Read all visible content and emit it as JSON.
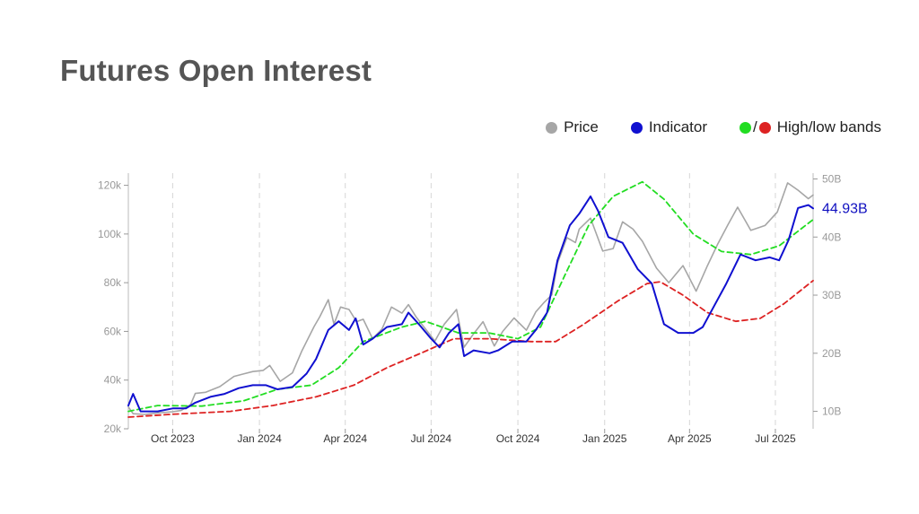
{
  "page": {
    "title": "Futures Open Interest"
  },
  "legend": {
    "price_label": "Price",
    "indicator_label": "Indicator",
    "bands_label": "High/low bands",
    "bands_separator": "/"
  },
  "colors": {
    "price": "#a6a6a6",
    "indicator": "#1010d0",
    "high_band": "#22dd22",
    "low_band": "#dd2222",
    "title": "#555555",
    "last_value": "#1010c0"
  },
  "chart_data": {
    "type": "line",
    "title": "Futures Open Interest",
    "x_axis": {
      "type": "date",
      "range": [
        "2023-08-15",
        "2025-08-10"
      ],
      "tick_labels": [
        "Oct 2023",
        "Jan 2024",
        "Apr 2024",
        "Jul 2024",
        "Oct 2024",
        "Jan 2025",
        "Apr 2025",
        "Jul 2025"
      ],
      "tick_dates": [
        "2023-10-01",
        "2024-01-01",
        "2024-04-01",
        "2024-07-01",
        "2024-10-01",
        "2025-01-01",
        "2025-04-01",
        "2025-07-01"
      ],
      "vertical_grid": "dashed"
    },
    "y_left": {
      "series": "Price",
      "range": [
        20000,
        125000
      ],
      "tick_values": [
        20000,
        40000,
        60000,
        80000,
        100000,
        120000
      ],
      "tick_labels": [
        "20k",
        "40k",
        "60k",
        "80k",
        "100k",
        "120k"
      ]
    },
    "y_right": {
      "series": "Indicator",
      "range": [
        7000000000,
        51000000000
      ],
      "tick_values": [
        10000000000,
        20000000000,
        30000000000,
        40000000000,
        50000000000
      ],
      "tick_labels": [
        "10B",
        "20B",
        "30B",
        "40B",
        "50B"
      ]
    },
    "last_value_label": "44.93B",
    "series": [
      {
        "name": "Price",
        "axis": "left",
        "points": [
          [
            "2023-08-15",
            29000
          ],
          [
            "2023-08-20",
            26200
          ],
          [
            "2023-09-01",
            25900
          ],
          [
            "2023-09-15",
            26500
          ],
          [
            "2023-10-01",
            27000
          ],
          [
            "2023-10-10",
            27500
          ],
          [
            "2023-10-20",
            30000
          ],
          [
            "2023-10-25",
            34500
          ],
          [
            "2023-11-05",
            35000
          ],
          [
            "2023-11-20",
            37300
          ],
          [
            "2023-12-05",
            41500
          ],
          [
            "2023-12-15",
            42500
          ],
          [
            "2023-12-25",
            43500
          ],
          [
            "2024-01-05",
            44000
          ],
          [
            "2024-01-12",
            46000
          ],
          [
            "2024-01-23",
            39500
          ],
          [
            "2024-02-05",
            43000
          ],
          [
            "2024-02-15",
            52000
          ],
          [
            "2024-02-28",
            62000
          ],
          [
            "2024-03-05",
            66000
          ],
          [
            "2024-03-14",
            73000
          ],
          [
            "2024-03-20",
            63000
          ],
          [
            "2024-03-27",
            70000
          ],
          [
            "2024-04-05",
            69000
          ],
          [
            "2024-04-13",
            64000
          ],
          [
            "2024-04-20",
            65000
          ],
          [
            "2024-04-30",
            57000
          ],
          [
            "2024-05-10",
            61000
          ],
          [
            "2024-05-20",
            70000
          ],
          [
            "2024-05-31",
            67500
          ],
          [
            "2024-06-07",
            71000
          ],
          [
            "2024-06-15",
            66000
          ],
          [
            "2024-06-25",
            61000
          ],
          [
            "2024-07-05",
            56000
          ],
          [
            "2024-07-15",
            63000
          ],
          [
            "2024-07-28",
            69000
          ],
          [
            "2024-08-05",
            53500
          ],
          [
            "2024-08-15",
            59000
          ],
          [
            "2024-08-25",
            64000
          ],
          [
            "2024-09-06",
            54000
          ],
          [
            "2024-09-15",
            60000
          ],
          [
            "2024-09-27",
            65500
          ],
          [
            "2024-10-10",
            60500
          ],
          [
            "2024-10-20",
            68000
          ],
          [
            "2024-10-29",
            72000
          ],
          [
            "2024-11-06",
            75000
          ],
          [
            "2024-11-12",
            88000
          ],
          [
            "2024-11-22",
            98500
          ],
          [
            "2024-12-01",
            96500
          ],
          [
            "2024-12-05",
            102000
          ],
          [
            "2024-12-17",
            106500
          ],
          [
            "2024-12-30",
            93000
          ],
          [
            "2025-01-10",
            94000
          ],
          [
            "2025-01-20",
            105000
          ],
          [
            "2025-01-31",
            102000
          ],
          [
            "2025-02-10",
            97000
          ],
          [
            "2025-02-25",
            86000
          ],
          [
            "2025-03-10",
            80000
          ],
          [
            "2025-03-25",
            87000
          ],
          [
            "2025-04-08",
            76500
          ],
          [
            "2025-04-20",
            87000
          ],
          [
            "2025-05-01",
            96000
          ],
          [
            "2025-05-12",
            104000
          ],
          [
            "2025-05-22",
            111000
          ],
          [
            "2025-06-05",
            101500
          ],
          [
            "2025-06-20",
            103500
          ],
          [
            "2025-07-03",
            109000
          ],
          [
            "2025-07-14",
            121000
          ],
          [
            "2025-07-25",
            118000
          ],
          [
            "2025-08-05",
            114500
          ],
          [
            "2025-08-10",
            116000
          ]
        ]
      },
      {
        "name": "Indicator",
        "axis": "right",
        "points": [
          [
            "2023-08-15",
            11000000000
          ],
          [
            "2023-08-20",
            13000000000
          ],
          [
            "2023-08-28",
            10000000000
          ],
          [
            "2023-09-15",
            10000000000
          ],
          [
            "2023-10-01",
            10500000000
          ],
          [
            "2023-10-15",
            10500000000
          ],
          [
            "2023-10-25",
            11500000000
          ],
          [
            "2023-11-10",
            12500000000
          ],
          [
            "2023-11-25",
            13000000000
          ],
          [
            "2023-12-10",
            14000000000
          ],
          [
            "2023-12-25",
            14500000000
          ],
          [
            "2024-01-08",
            14500000000
          ],
          [
            "2024-01-20",
            13800000000
          ],
          [
            "2024-02-05",
            14200000000
          ],
          [
            "2024-02-20",
            16500000000
          ],
          [
            "2024-03-01",
            19000000000
          ],
          [
            "2024-03-14",
            24000000000
          ],
          [
            "2024-03-25",
            25500000000
          ],
          [
            "2024-04-05",
            24000000000
          ],
          [
            "2024-04-12",
            26000000000
          ],
          [
            "2024-04-20",
            21500000000
          ],
          [
            "2024-04-30",
            22500000000
          ],
          [
            "2024-05-15",
            24500000000
          ],
          [
            "2024-05-31",
            25000000000
          ],
          [
            "2024-06-07",
            27000000000
          ],
          [
            "2024-06-18",
            25000000000
          ],
          [
            "2024-07-01",
            22500000000
          ],
          [
            "2024-07-10",
            21000000000
          ],
          [
            "2024-07-20",
            23500000000
          ],
          [
            "2024-07-30",
            25000000000
          ],
          [
            "2024-08-05",
            19500000000
          ],
          [
            "2024-08-15",
            20500000000
          ],
          [
            "2024-09-01",
            20000000000
          ],
          [
            "2024-09-10",
            20500000000
          ],
          [
            "2024-09-25",
            22000000000
          ],
          [
            "2024-10-10",
            22000000000
          ],
          [
            "2024-10-20",
            24000000000
          ],
          [
            "2024-11-01",
            27000000000
          ],
          [
            "2024-11-12",
            36000000000
          ],
          [
            "2024-11-25",
            42000000000
          ],
          [
            "2024-12-05",
            44000000000
          ],
          [
            "2024-12-17",
            47000000000
          ],
          [
            "2024-12-25",
            44500000000
          ],
          [
            "2025-01-05",
            40000000000
          ],
          [
            "2025-01-20",
            39000000000
          ],
          [
            "2025-02-05",
            34500000000
          ],
          [
            "2025-02-20",
            32000000000
          ],
          [
            "2025-03-05",
            25000000000
          ],
          [
            "2025-03-20",
            23500000000
          ],
          [
            "2025-04-05",
            23500000000
          ],
          [
            "2025-04-15",
            24500000000
          ],
          [
            "2025-04-25",
            27500000000
          ],
          [
            "2025-05-10",
            32000000000
          ],
          [
            "2025-05-25",
            37000000000
          ],
          [
            "2025-06-10",
            36000000000
          ],
          [
            "2025-06-25",
            36500000000
          ],
          [
            "2025-07-05",
            36000000000
          ],
          [
            "2025-07-15",
            39500000000
          ],
          [
            "2025-07-25",
            45000000000
          ],
          [
            "2025-08-05",
            45500000000
          ],
          [
            "2025-08-10",
            44930000000
          ]
        ]
      },
      {
        "name": "High band",
        "axis": "right",
        "style": "dashed",
        "points": [
          [
            "2023-08-15",
            10000000000
          ],
          [
            "2023-09-15",
            11000000000
          ],
          [
            "2023-11-01",
            10900000000
          ],
          [
            "2023-12-15",
            11800000000
          ],
          [
            "2024-01-20",
            13800000000
          ],
          [
            "2024-02-25",
            14500000000
          ],
          [
            "2024-03-25",
            17500000000
          ],
          [
            "2024-04-20",
            22000000000
          ],
          [
            "2024-05-31",
            24500000000
          ],
          [
            "2024-06-25",
            25500000000
          ],
          [
            "2024-07-30",
            23500000000
          ],
          [
            "2024-08-31",
            23500000000
          ],
          [
            "2024-10-01",
            22500000000
          ],
          [
            "2024-10-25",
            24500000000
          ],
          [
            "2024-11-20",
            33500000000
          ],
          [
            "2024-12-15",
            42000000000
          ],
          [
            "2025-01-10",
            47000000000
          ],
          [
            "2025-02-10",
            49500000000
          ],
          [
            "2025-03-05",
            46500000000
          ],
          [
            "2025-04-05",
            40500000000
          ],
          [
            "2025-05-05",
            37500000000
          ],
          [
            "2025-06-05",
            37000000000
          ],
          [
            "2025-07-05",
            38500000000
          ],
          [
            "2025-08-10",
            43000000000
          ]
        ]
      },
      {
        "name": "Low band",
        "axis": "right",
        "style": "dashed",
        "points": [
          [
            "2023-08-15",
            9000000000
          ],
          [
            "2023-10-01",
            9500000000
          ],
          [
            "2023-12-01",
            10000000000
          ],
          [
            "2024-01-15",
            11000000000
          ],
          [
            "2024-03-01",
            12500000000
          ],
          [
            "2024-04-10",
            14500000000
          ],
          [
            "2024-05-15",
            17500000000
          ],
          [
            "2024-06-20",
            20000000000
          ],
          [
            "2024-07-25",
            22500000000
          ],
          [
            "2024-09-01",
            22500000000
          ],
          [
            "2024-10-15",
            22000000000
          ],
          [
            "2024-11-10",
            22000000000
          ],
          [
            "2024-12-10",
            25000000000
          ],
          [
            "2025-01-15",
            29000000000
          ],
          [
            "2025-02-15",
            32000000000
          ],
          [
            "2025-03-01",
            32300000000
          ],
          [
            "2025-03-25",
            30000000000
          ],
          [
            "2025-04-20",
            27000000000
          ],
          [
            "2025-05-20",
            25500000000
          ],
          [
            "2025-06-15",
            26000000000
          ],
          [
            "2025-07-10",
            28500000000
          ],
          [
            "2025-08-10",
            32500000000
          ]
        ]
      }
    ]
  }
}
